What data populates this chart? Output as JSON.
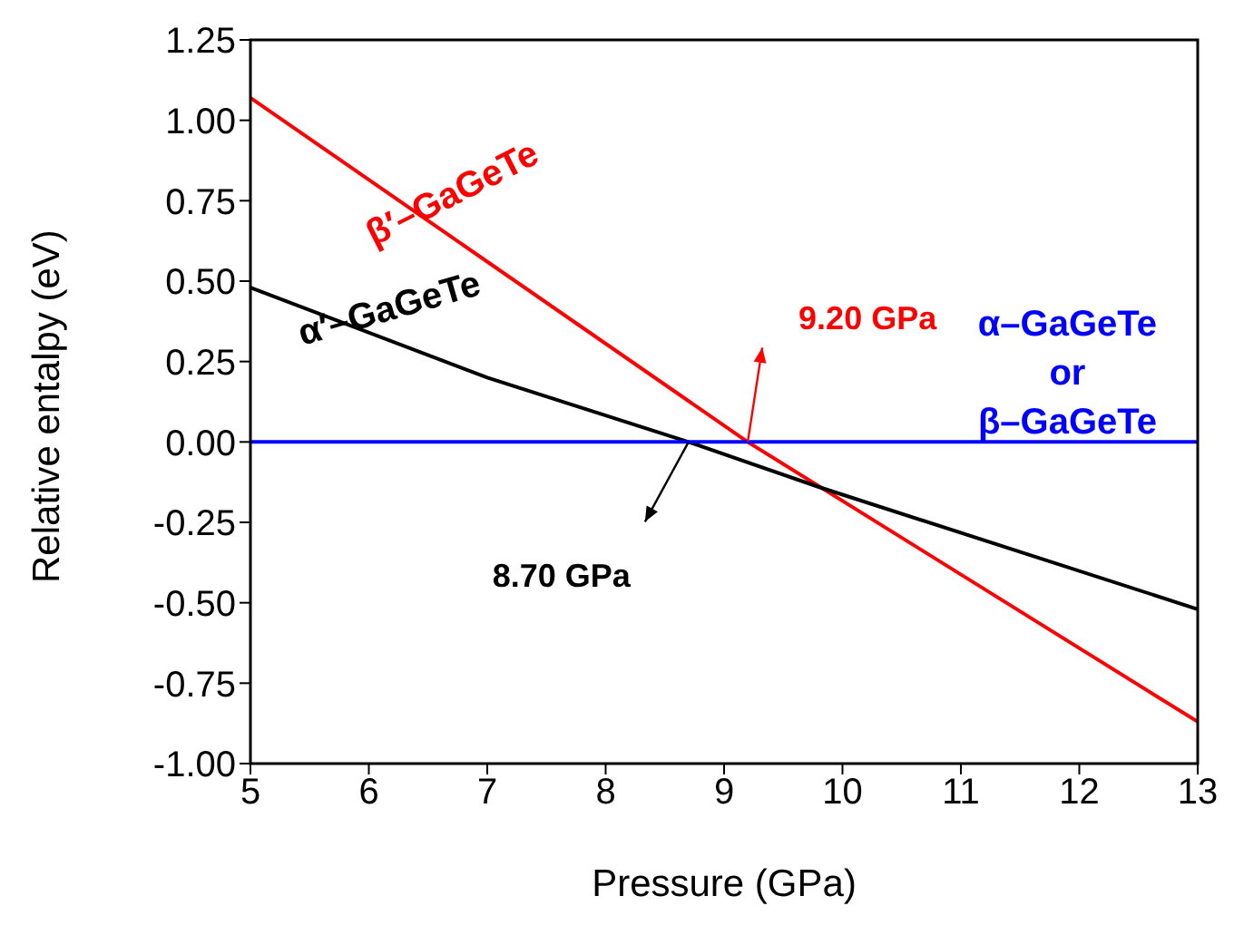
{
  "chart_data": {
    "type": "line",
    "xlabel": "Pressure (GPa)",
    "ylabel": "Relative entalpy (eV)",
    "xlim": [
      5,
      13
    ],
    "xticks": [
      5,
      6,
      7,
      8,
      9,
      10,
      11,
      12,
      13
    ],
    "ylim": [
      -1,
      1.25
    ],
    "yticks": [
      {
        "value": -1,
        "label": "-1.00"
      },
      {
        "value": -0.75,
        "label": "-0.75"
      },
      {
        "value": -0.5,
        "label": "-0.50"
      },
      {
        "value": -0.25,
        "label": "-0.25"
      },
      {
        "value": 0,
        "label": "0.00"
      },
      {
        "value": 0.25,
        "label": "0.25"
      },
      {
        "value": 0.5,
        "label": "0.50"
      },
      {
        "value": 0.75,
        "label": "0.75"
      },
      {
        "value": 1,
        "label": "1.00"
      },
      {
        "value": 1.25,
        "label": "1.25"
      }
    ],
    "marker": "none",
    "line_style": "solid",
    "series": [
      {
        "name": "β′–GaGeTe",
        "color": "#ff0000",
        "x": [
          5,
          9.2,
          13
        ],
        "values": [
          1.07,
          0,
          -0.87
        ]
      },
      {
        "name": "α′–GaGeTe",
        "color": "#000000",
        "x": [
          5,
          7,
          8.7,
          9.8,
          13
        ],
        "values": [
          0.48,
          0.2,
          0,
          -0.14,
          -0.52
        ]
      },
      {
        "name": "α–GaGeTe or β–GaGeTe",
        "color": "#0000ff",
        "x": [
          5,
          13
        ],
        "values": [
          0,
          0
        ]
      }
    ],
    "annotations": [
      {
        "text": "9.20 GPa",
        "x": 9.2,
        "y": 0
      },
      {
        "text": "8.70 GPa",
        "x": 8.7,
        "y": 0
      }
    ]
  }
}
